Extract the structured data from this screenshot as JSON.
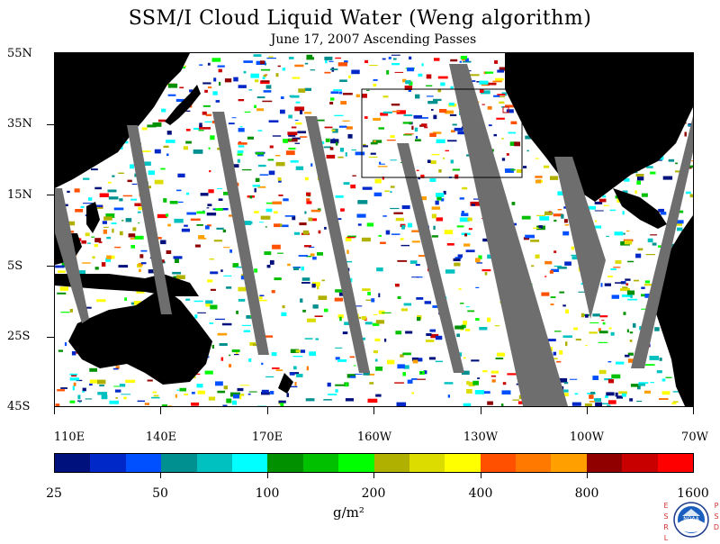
{
  "title": "SSM/I Cloud Liquid Water (Weng algorithm)",
  "subtitle": "June 17, 2007  Ascending Passes",
  "y_axis_labels": [
    "55N",
    "35N",
    "15N",
    "5S",
    "25S",
    "45S"
  ],
  "x_axis_labels": [
    "110E",
    "140E",
    "170E",
    "160W",
    "130W",
    "100W",
    "70W"
  ],
  "colorbar": {
    "colors": [
      "#00107c",
      "#0028c8",
      "#0050ff",
      "#009090",
      "#00c0c0",
      "#00ffff",
      "#009000",
      "#00c000",
      "#00ff00",
      "#b0b000",
      "#dcdc00",
      "#ffff00",
      "#ff5000",
      "#ff7800",
      "#ffa000",
      "#900000",
      "#c80000",
      "#ff0000"
    ],
    "labels": [
      "25",
      "50",
      "100",
      "200",
      "400",
      "800",
      "1600"
    ]
  },
  "units": "g/m²",
  "logo": {
    "name": "NOAA",
    "left_text": "ESRL",
    "right_text": "PSD"
  },
  "map_colors": {
    "land": "#000000",
    "missing_swath": "#6e6e6e",
    "no_cloud": "#ffffff"
  }
}
